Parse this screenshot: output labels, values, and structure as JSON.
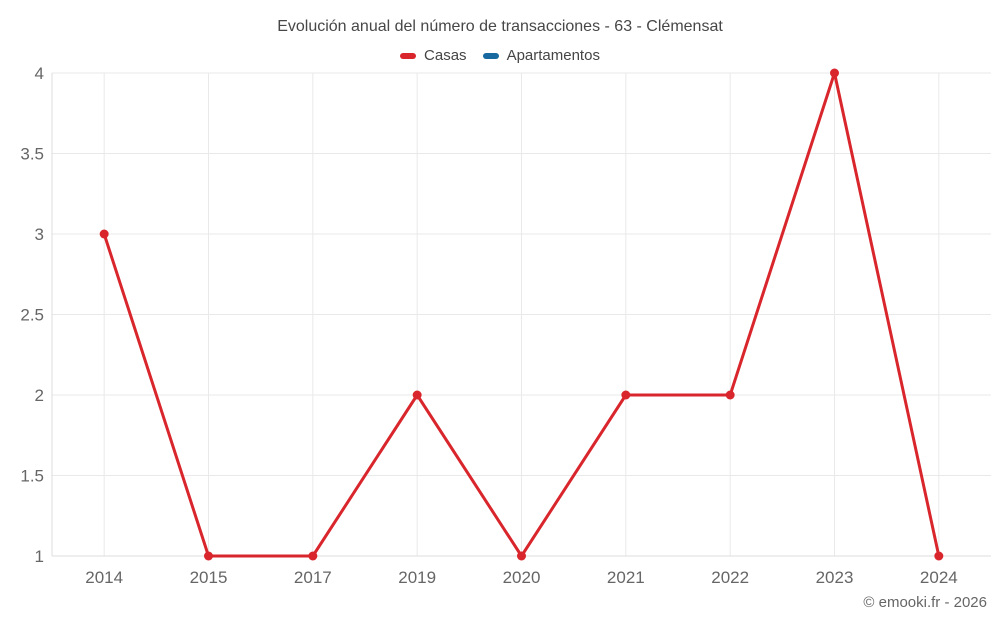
{
  "title": "Evolución anual del número de transacciones - 63 - Clémensat",
  "legend": {
    "items": [
      {
        "label": "Casas",
        "color": "#d9262c"
      },
      {
        "label": "Apartamentos",
        "color": "#17699f"
      }
    ]
  },
  "chart_data": {
    "type": "line",
    "title": "Evolución anual del número de transacciones - 63 - Clémensat",
    "x": [
      "2014",
      "2015",
      "2017",
      "2019",
      "2020",
      "2021",
      "2022",
      "2023",
      "2024"
    ],
    "series": [
      {
        "name": "Casas",
        "color": "#d9262c",
        "values": [
          3,
          1,
          1,
          2,
          1,
          2,
          2,
          4,
          1
        ]
      },
      {
        "name": "Apartamentos",
        "color": "#17699f",
        "values": []
      }
    ],
    "xlabel": "",
    "ylabel": "",
    "ylim": [
      1,
      4
    ],
    "yticks": [
      1,
      1.5,
      2,
      2.5,
      3,
      3.5,
      4
    ],
    "ytick_labels": [
      "1",
      "1.5",
      "2",
      "2.5",
      "3",
      "3.5",
      "4"
    ],
    "grid": true,
    "legend_position": "top"
  },
  "credits": {
    "text": "© emooki.fr - 2026"
  },
  "colors": {
    "background": "#ffffff",
    "grid": "#e9e9e9",
    "axis": "#dcdcdc",
    "tick_label": "#666666",
    "title_text": "#474747"
  }
}
